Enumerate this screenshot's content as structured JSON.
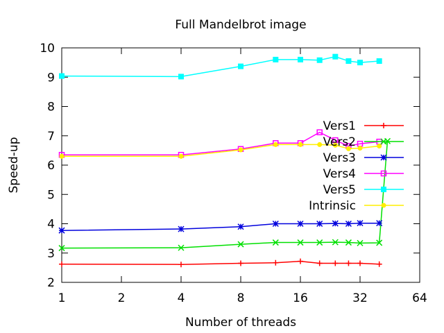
{
  "chart_data": {
    "type": "line",
    "title": "Full Mandelbrot image",
    "xlabel": "Number of threads",
    "ylabel": "Speed-up",
    "x_scale": "log2",
    "xlim": [
      1,
      64
    ],
    "ylim": [
      2,
      10
    ],
    "x_ticks": [
      1,
      2,
      4,
      8,
      16,
      32,
      64
    ],
    "y_ticks": [
      2,
      3,
      4,
      5,
      6,
      7,
      8,
      9,
      10
    ],
    "grid": false,
    "legend_position": "right",
    "series": [
      {
        "name": "Vers1",
        "color": "#ff0000",
        "marker": "plus",
        "points": [
          [
            1,
            2.62
          ],
          [
            4,
            2.61
          ],
          [
            8,
            2.65
          ],
          [
            12,
            2.67
          ],
          [
            16,
            2.72
          ],
          [
            20,
            2.65
          ],
          [
            24,
            2.65
          ],
          [
            28,
            2.65
          ],
          [
            32,
            2.65
          ],
          [
            40,
            2.62
          ]
        ]
      },
      {
        "name": "Vers2",
        "color": "#00e000",
        "marker": "cross",
        "points": [
          [
            1,
            3.17
          ],
          [
            4,
            3.18
          ],
          [
            8,
            3.3
          ],
          [
            12,
            3.36
          ],
          [
            16,
            3.36
          ],
          [
            20,
            3.36
          ],
          [
            24,
            3.37
          ],
          [
            28,
            3.36
          ],
          [
            32,
            3.34
          ],
          [
            40,
            3.35
          ],
          [
            44,
            6.82
          ]
        ]
      },
      {
        "name": "Vers3",
        "color": "#0000dd",
        "marker": "star",
        "points": [
          [
            1,
            3.77
          ],
          [
            4,
            3.82
          ],
          [
            8,
            3.9
          ],
          [
            12,
            4.0
          ],
          [
            16,
            4.0
          ],
          [
            20,
            4.0
          ],
          [
            24,
            4.01
          ],
          [
            28,
            4.0
          ],
          [
            32,
            4.02
          ],
          [
            40,
            4.02
          ]
        ]
      },
      {
        "name": "Vers4",
        "color": "#ff00ff",
        "marker": "box",
        "points": [
          [
            1,
            6.35
          ],
          [
            4,
            6.35
          ],
          [
            8,
            6.55
          ],
          [
            12,
            6.75
          ],
          [
            16,
            6.75
          ],
          [
            20,
            7.12
          ],
          [
            24,
            6.85
          ],
          [
            28,
            6.65
          ],
          [
            32,
            6.73
          ],
          [
            40,
            6.8
          ]
        ]
      },
      {
        "name": "Vers5",
        "color": "#00ffff",
        "marker": "filled-box",
        "points": [
          [
            1,
            9.04
          ],
          [
            4,
            9.02
          ],
          [
            8,
            9.37
          ],
          [
            12,
            9.6
          ],
          [
            16,
            9.6
          ],
          [
            20,
            9.58
          ],
          [
            24,
            9.7
          ],
          [
            28,
            9.55
          ],
          [
            32,
            9.5
          ],
          [
            40,
            9.55
          ]
        ]
      },
      {
        "name": "Intrinsic",
        "color": "#ffee00",
        "marker": "circle",
        "points": [
          [
            1,
            6.3
          ],
          [
            4,
            6.3
          ],
          [
            8,
            6.52
          ],
          [
            12,
            6.7
          ],
          [
            16,
            6.7
          ],
          [
            20,
            6.7
          ],
          [
            24,
            6.68
          ],
          [
            28,
            6.56
          ],
          [
            32,
            6.58
          ],
          [
            40,
            6.65
          ]
        ]
      }
    ]
  }
}
